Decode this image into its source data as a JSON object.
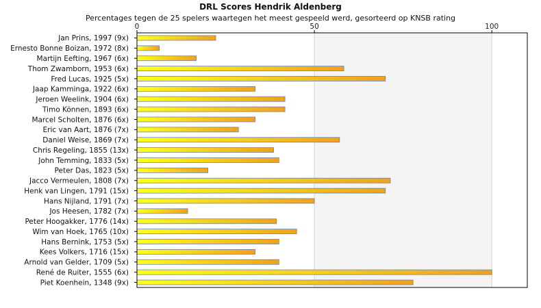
{
  "chart_data": {
    "type": "bar",
    "orientation": "horizontal",
    "title": "DRL Scores Hendrik Aldenberg",
    "subtitle": "Percentages tegen de 25 spelers waartegen het meest gespeeld werd, gesorteerd op KNSB rating",
    "xlim": [
      0,
      110
    ],
    "x_ticks": [
      0,
      50,
      100
    ],
    "grid": true,
    "categories": [
      "Jan Prins, 1997 (9x)",
      "Ernesto Bonne Boizan, 1972 (8x)",
      "Martijn Eefting, 1967 (6x)",
      "Thom Zwamborn, 1953 (6x)",
      "Fred Lucas, 1925 (5x)",
      "Jaap Kamminga, 1922 (6x)",
      "Jeroen Weelink, 1904 (6x)",
      "Timo Können, 1893 (6x)",
      "Marcel Scholten, 1876 (6x)",
      "Eric van Aart, 1876 (7x)",
      "Daniel Weise, 1869 (7x)",
      "Chris Regeling, 1855 (13x)",
      "John Temming, 1833 (5x)",
      "Peter Das, 1823 (5x)",
      "Jacco Vermeulen, 1808 (7x)",
      "Henk van Lingen, 1791 (15x)",
      "Hans Nijland, 1791 (7x)",
      "Jos Heesen, 1782 (7x)",
      "Peter Hoogakker, 1776 (14x)",
      "Wim van Hoek, 1765 (10x)",
      "Hans Bernink, 1753 (5x)",
      "Kees Volkers, 1716 (15x)",
      "Arnold van Gelder, 1709 (5x)",
      "René de Ruiter, 1555 (6x)",
      "Piet Koenhein, 1348 (9x)"
    ],
    "values": [
      22.2,
      6.3,
      16.7,
      58.3,
      70,
      33.3,
      41.7,
      41.7,
      33.3,
      28.6,
      57.1,
      38.5,
      40,
      20,
      71.4,
      70,
      50,
      14.3,
      39.3,
      45,
      40,
      33.3,
      40,
      100,
      77.8
    ],
    "colors": {
      "bar_start": "#ffff1a",
      "bar_end": "#f0a020",
      "bar_stroke": "#6a86ad",
      "band_light": "#f4f4f4",
      "grid": "#d6d6d6",
      "axis": "#000000"
    }
  }
}
